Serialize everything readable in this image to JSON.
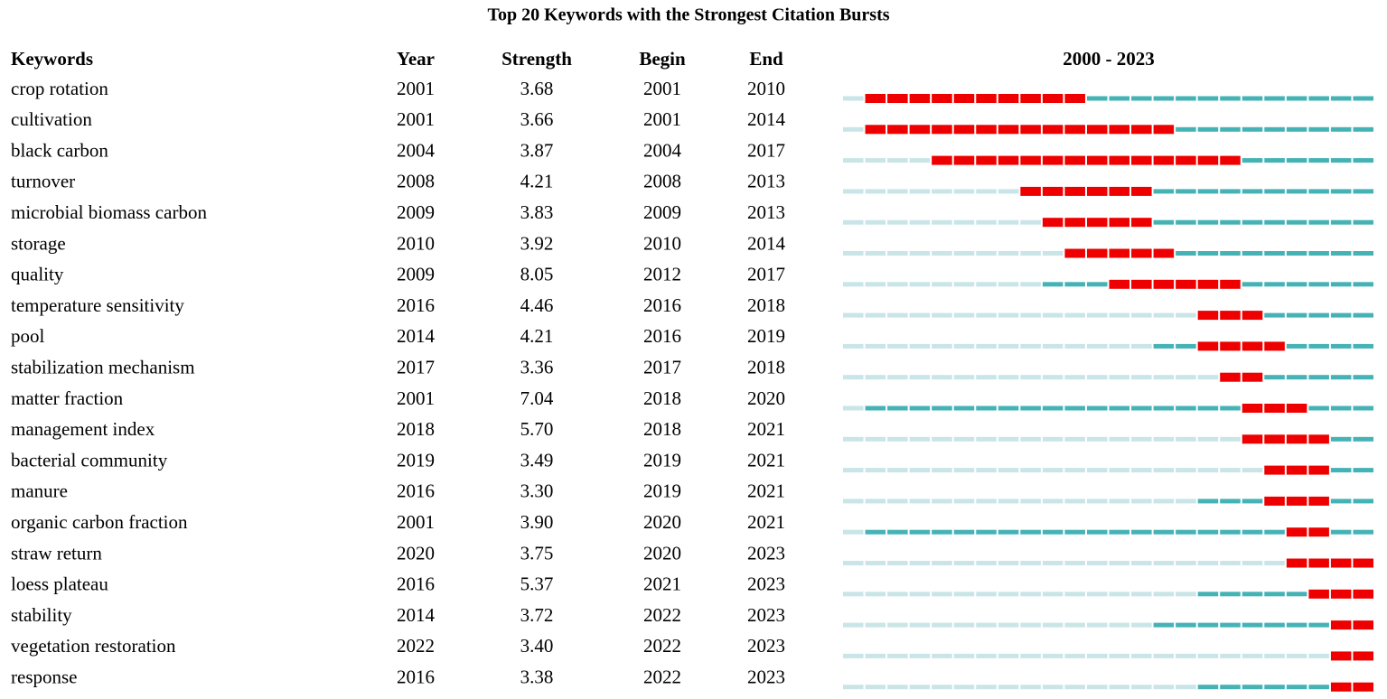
{
  "title": "Top 20 Keywords with the Strongest Citation Bursts",
  "headers": {
    "keyword": "Keywords",
    "year": "Year",
    "strength": "Strength",
    "begin": "Begin",
    "end": "End"
  },
  "timeline": {
    "label": "2000 - 2023",
    "start": 2000,
    "end": 2023,
    "colors": {
      "before": "#c9e5e7",
      "active": "#45b3b6",
      "burst": "#ee0000"
    }
  },
  "rows": [
    {
      "keyword": "crop rotation",
      "year": 2001,
      "strength": "3.68",
      "begin": 2001,
      "end": 2010
    },
    {
      "keyword": "cultivation",
      "year": 2001,
      "strength": "3.66",
      "begin": 2001,
      "end": 2014
    },
    {
      "keyword": "black carbon",
      "year": 2004,
      "strength": "3.87",
      "begin": 2004,
      "end": 2017
    },
    {
      "keyword": "turnover",
      "year": 2008,
      "strength": "4.21",
      "begin": 2008,
      "end": 2013
    },
    {
      "keyword": "microbial biomass carbon",
      "year": 2009,
      "strength": "3.83",
      "begin": 2009,
      "end": 2013
    },
    {
      "keyword": "storage",
      "year": 2010,
      "strength": "3.92",
      "begin": 2010,
      "end": 2014
    },
    {
      "keyword": "quality",
      "year": 2009,
      "strength": "8.05",
      "begin": 2012,
      "end": 2017
    },
    {
      "keyword": "temperature sensitivity",
      "year": 2016,
      "strength": "4.46",
      "begin": 2016,
      "end": 2018
    },
    {
      "keyword": "pool",
      "year": 2014,
      "strength": "4.21",
      "begin": 2016,
      "end": 2019
    },
    {
      "keyword": "stabilization mechanism",
      "year": 2017,
      "strength": "3.36",
      "begin": 2017,
      "end": 2018
    },
    {
      "keyword": "matter fraction",
      "year": 2001,
      "strength": "7.04",
      "begin": 2018,
      "end": 2020
    },
    {
      "keyword": "management index",
      "year": 2018,
      "strength": "5.70",
      "begin": 2018,
      "end": 2021
    },
    {
      "keyword": "bacterial community",
      "year": 2019,
      "strength": "3.49",
      "begin": 2019,
      "end": 2021
    },
    {
      "keyword": "manure",
      "year": 2016,
      "strength": "3.30",
      "begin": 2019,
      "end": 2021
    },
    {
      "keyword": "organic carbon fraction",
      "year": 2001,
      "strength": "3.90",
      "begin": 2020,
      "end": 2021
    },
    {
      "keyword": "straw return",
      "year": 2020,
      "strength": "3.75",
      "begin": 2020,
      "end": 2023
    },
    {
      "keyword": "loess plateau",
      "year": 2016,
      "strength": "5.37",
      "begin": 2021,
      "end": 2023
    },
    {
      "keyword": "stability",
      "year": 2014,
      "strength": "3.72",
      "begin": 2022,
      "end": 2023
    },
    {
      "keyword": "vegetation restoration",
      "year": 2022,
      "strength": "3.40",
      "begin": 2022,
      "end": 2023
    },
    {
      "keyword": "response",
      "year": 2016,
      "strength": "3.38",
      "begin": 2022,
      "end": 2023
    }
  ]
}
